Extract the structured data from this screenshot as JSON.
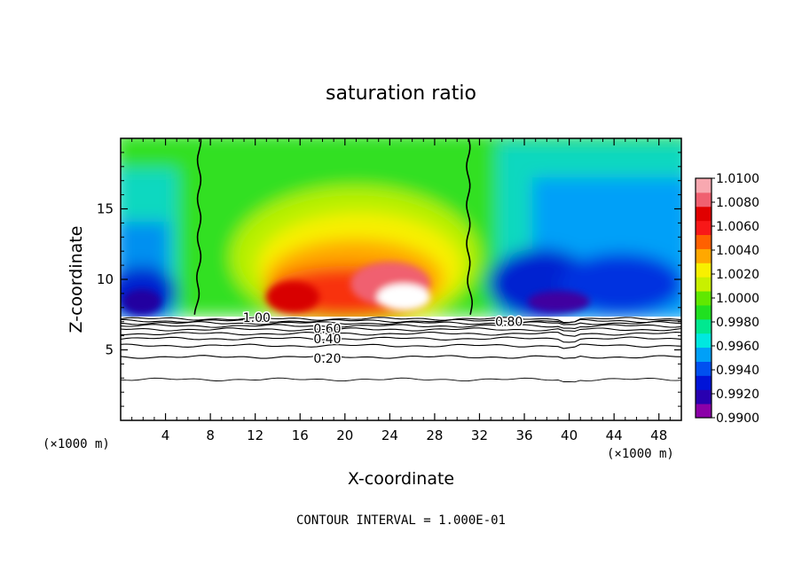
{
  "chart_data": {
    "type": "heatmap",
    "title": "saturation ratio",
    "xlabel": "X-coordinate",
    "ylabel": "Z-coordinate",
    "x_unit_left": "(×1000 m)",
    "x_unit_right": "(×1000 m)",
    "xlim": [
      0,
      50
    ],
    "ylim": [
      0,
      20
    ],
    "x_ticks": [
      4,
      8,
      12,
      16,
      20,
      24,
      28,
      32,
      36,
      40,
      44,
      48
    ],
    "y_ticks": [
      5,
      10,
      15
    ],
    "footer": "CONTOUR INTERVAL = 1.000E-01",
    "colorbar": {
      "min": 0.99,
      "max": 1.01,
      "labels": [
        "1.0100",
        "1.0080",
        "1.0060",
        "1.0040",
        "1.0020",
        "1.0000",
        "0.9980",
        "0.9960",
        "0.9940",
        "0.9920",
        "0.9900"
      ],
      "colors": [
        "#8b00a8",
        "#2800b0",
        "#0014d8",
        "#0050f0",
        "#00a0f8",
        "#00e8e0",
        "#00e890",
        "#20e020",
        "#60e800",
        "#c8f000",
        "#f8f000",
        "#ffa800",
        "#ff6000",
        "#f81818",
        "#e00000",
        "#f06070",
        "#f8a8b0"
      ]
    },
    "contours": [
      {
        "label": "1.00",
        "label_x": 10.9,
        "label_y": 7.3,
        "y_levels": []
      },
      {
        "label": "0.80",
        "label_x": 33.4,
        "label_y": 7.0
      },
      {
        "label": "0.60",
        "label_x": 17.2,
        "label_y": 6.5
      },
      {
        "label": "0.40",
        "label_x": 17.2,
        "label_y": 5.8
      },
      {
        "label": "0.20",
        "label_x": 17.2,
        "label_y": 4.4
      }
    ],
    "contour_lines_y": [
      7.2,
      7.05,
      6.9,
      6.7,
      6.45,
      6.15,
      5.8,
      5.3,
      4.5,
      2.9
    ],
    "vertical_contours_x": [
      7.0,
      31.0
    ],
    "cloud_base_z": 7.3
  }
}
